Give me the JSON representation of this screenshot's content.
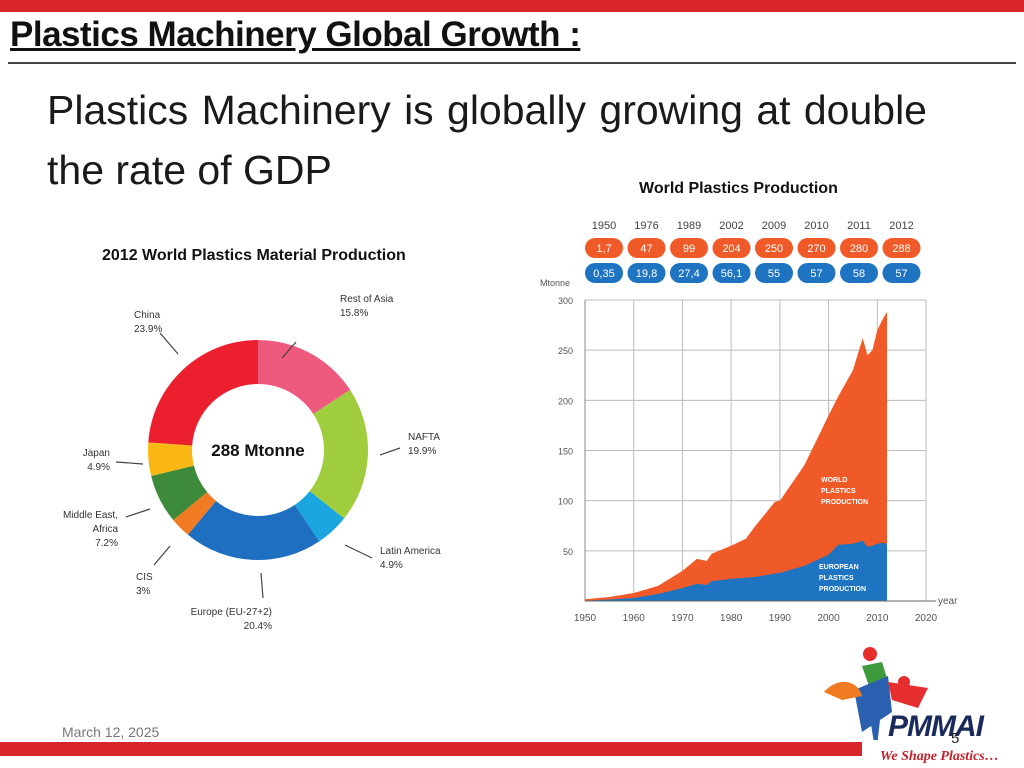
{
  "slide": {
    "title": "Plastics Machinery Global Growth :",
    "subtitle": "Plastics Machinery is globally growing at double the rate of GDP",
    "date": "March 12, 2025",
    "page_number": "5",
    "logo_text": "PMMAI",
    "logo_tagline": "We Shape Plastics…"
  },
  "colors": {
    "accent_red": "#d9262b",
    "orange": "#f05a28",
    "blue": "#1f74c2"
  },
  "chart_data": [
    {
      "type": "pie",
      "title": "2012 World Plastics Material Production",
      "center_label": "288 Mtonne",
      "slices": [
        {
          "label": "Rest of Asia",
          "value_label": "15.8%",
          "value": 15.8,
          "color": "#ee5a7e"
        },
        {
          "label": "NAFTA",
          "value_label": "19.9%",
          "value": 19.9,
          "color": "#9fcd3e"
        },
        {
          "label": "Latin America",
          "value_label": "4.9%",
          "value": 4.9,
          "color": "#1ba6e0"
        },
        {
          "label": "Europe (EU-27+2)",
          "value_label": "20.4%",
          "value": 20.4,
          "color": "#1f6fc0"
        },
        {
          "label": "CIS",
          "value_label": "3%",
          "value": 3.0,
          "color": "#f07b22"
        },
        {
          "label": "Middle East, Africa",
          "value_label": "7.2%",
          "value": 7.2,
          "color": "#3d8b3a"
        },
        {
          "label": "Japan",
          "value_label": "4.9%",
          "value": 4.9,
          "color": "#fbb714"
        },
        {
          "label": "China",
          "value_label": "23.9%",
          "value": 23.9,
          "color": "#ec1f2e"
        }
      ]
    },
    {
      "type": "area",
      "title": "World Plastics Production",
      "ylabel": "Mtonne",
      "xlabel": "year",
      "x_ticks": [
        "1950",
        "1960",
        "1970",
        "1980",
        "1990",
        "2000",
        "2010",
        "2020"
      ],
      "y_ticks": [
        "300",
        "250",
        "200",
        "150",
        "100",
        "50"
      ],
      "xlim": [
        1950,
        2020
      ],
      "ylim": [
        0,
        300
      ],
      "grid": true,
      "table": {
        "years": [
          "1950",
          "1976",
          "1989",
          "2002",
          "2009",
          "2010",
          "2011",
          "2012"
        ],
        "world": [
          "1,7",
          "47",
          "99",
          "204",
          "250",
          "270",
          "280",
          "288"
        ],
        "europe": [
          "0,35",
          "19,8",
          "27,4",
          "56,1",
          "55",
          "57",
          "58",
          "57"
        ]
      },
      "series": [
        {
          "name": "WORLD PLASTICS PRODUCTION",
          "color": "#f05a28",
          "points": [
            [
              1950,
              1.7
            ],
            [
              1955,
              4
            ],
            [
              1960,
              8
            ],
            [
              1965,
              15
            ],
            [
              1970,
              30
            ],
            [
              1973,
              42
            ],
            [
              1975,
              40
            ],
            [
              1976,
              47
            ],
            [
              1980,
              55
            ],
            [
              1983,
              62
            ],
            [
              1985,
              75
            ],
            [
              1989,
              99
            ],
            [
              1990,
              100
            ],
            [
              1995,
              135
            ],
            [
              2000,
              185
            ],
            [
              2002,
              204
            ],
            [
              2005,
              230
            ],
            [
              2007,
              262
            ],
            [
              2008,
              245
            ],
            [
              2009,
              250
            ],
            [
              2010,
              270
            ],
            [
              2011,
              280
            ],
            [
              2012,
              288
            ]
          ]
        },
        {
          "name": "EUROPEAN PLASTICS PRODUCTION",
          "color": "#1f74c2",
          "points": [
            [
              1950,
              0.35
            ],
            [
              1955,
              1.5
            ],
            [
              1960,
              3
            ],
            [
              1965,
              7
            ],
            [
              1970,
              13
            ],
            [
              1973,
              17
            ],
            [
              1975,
              16
            ],
            [
              1976,
              19.8
            ],
            [
              1980,
              22
            ],
            [
              1985,
              24
            ],
            [
              1989,
              27.4
            ],
            [
              1990,
              28
            ],
            [
              1995,
              35
            ],
            [
              2000,
              46
            ],
            [
              2002,
              56.1
            ],
            [
              2005,
              57
            ],
            [
              2007,
              60
            ],
            [
              2008,
              54
            ],
            [
              2009,
              55
            ],
            [
              2010,
              57
            ],
            [
              2011,
              58
            ],
            [
              2012,
              57
            ]
          ]
        }
      ]
    }
  ]
}
